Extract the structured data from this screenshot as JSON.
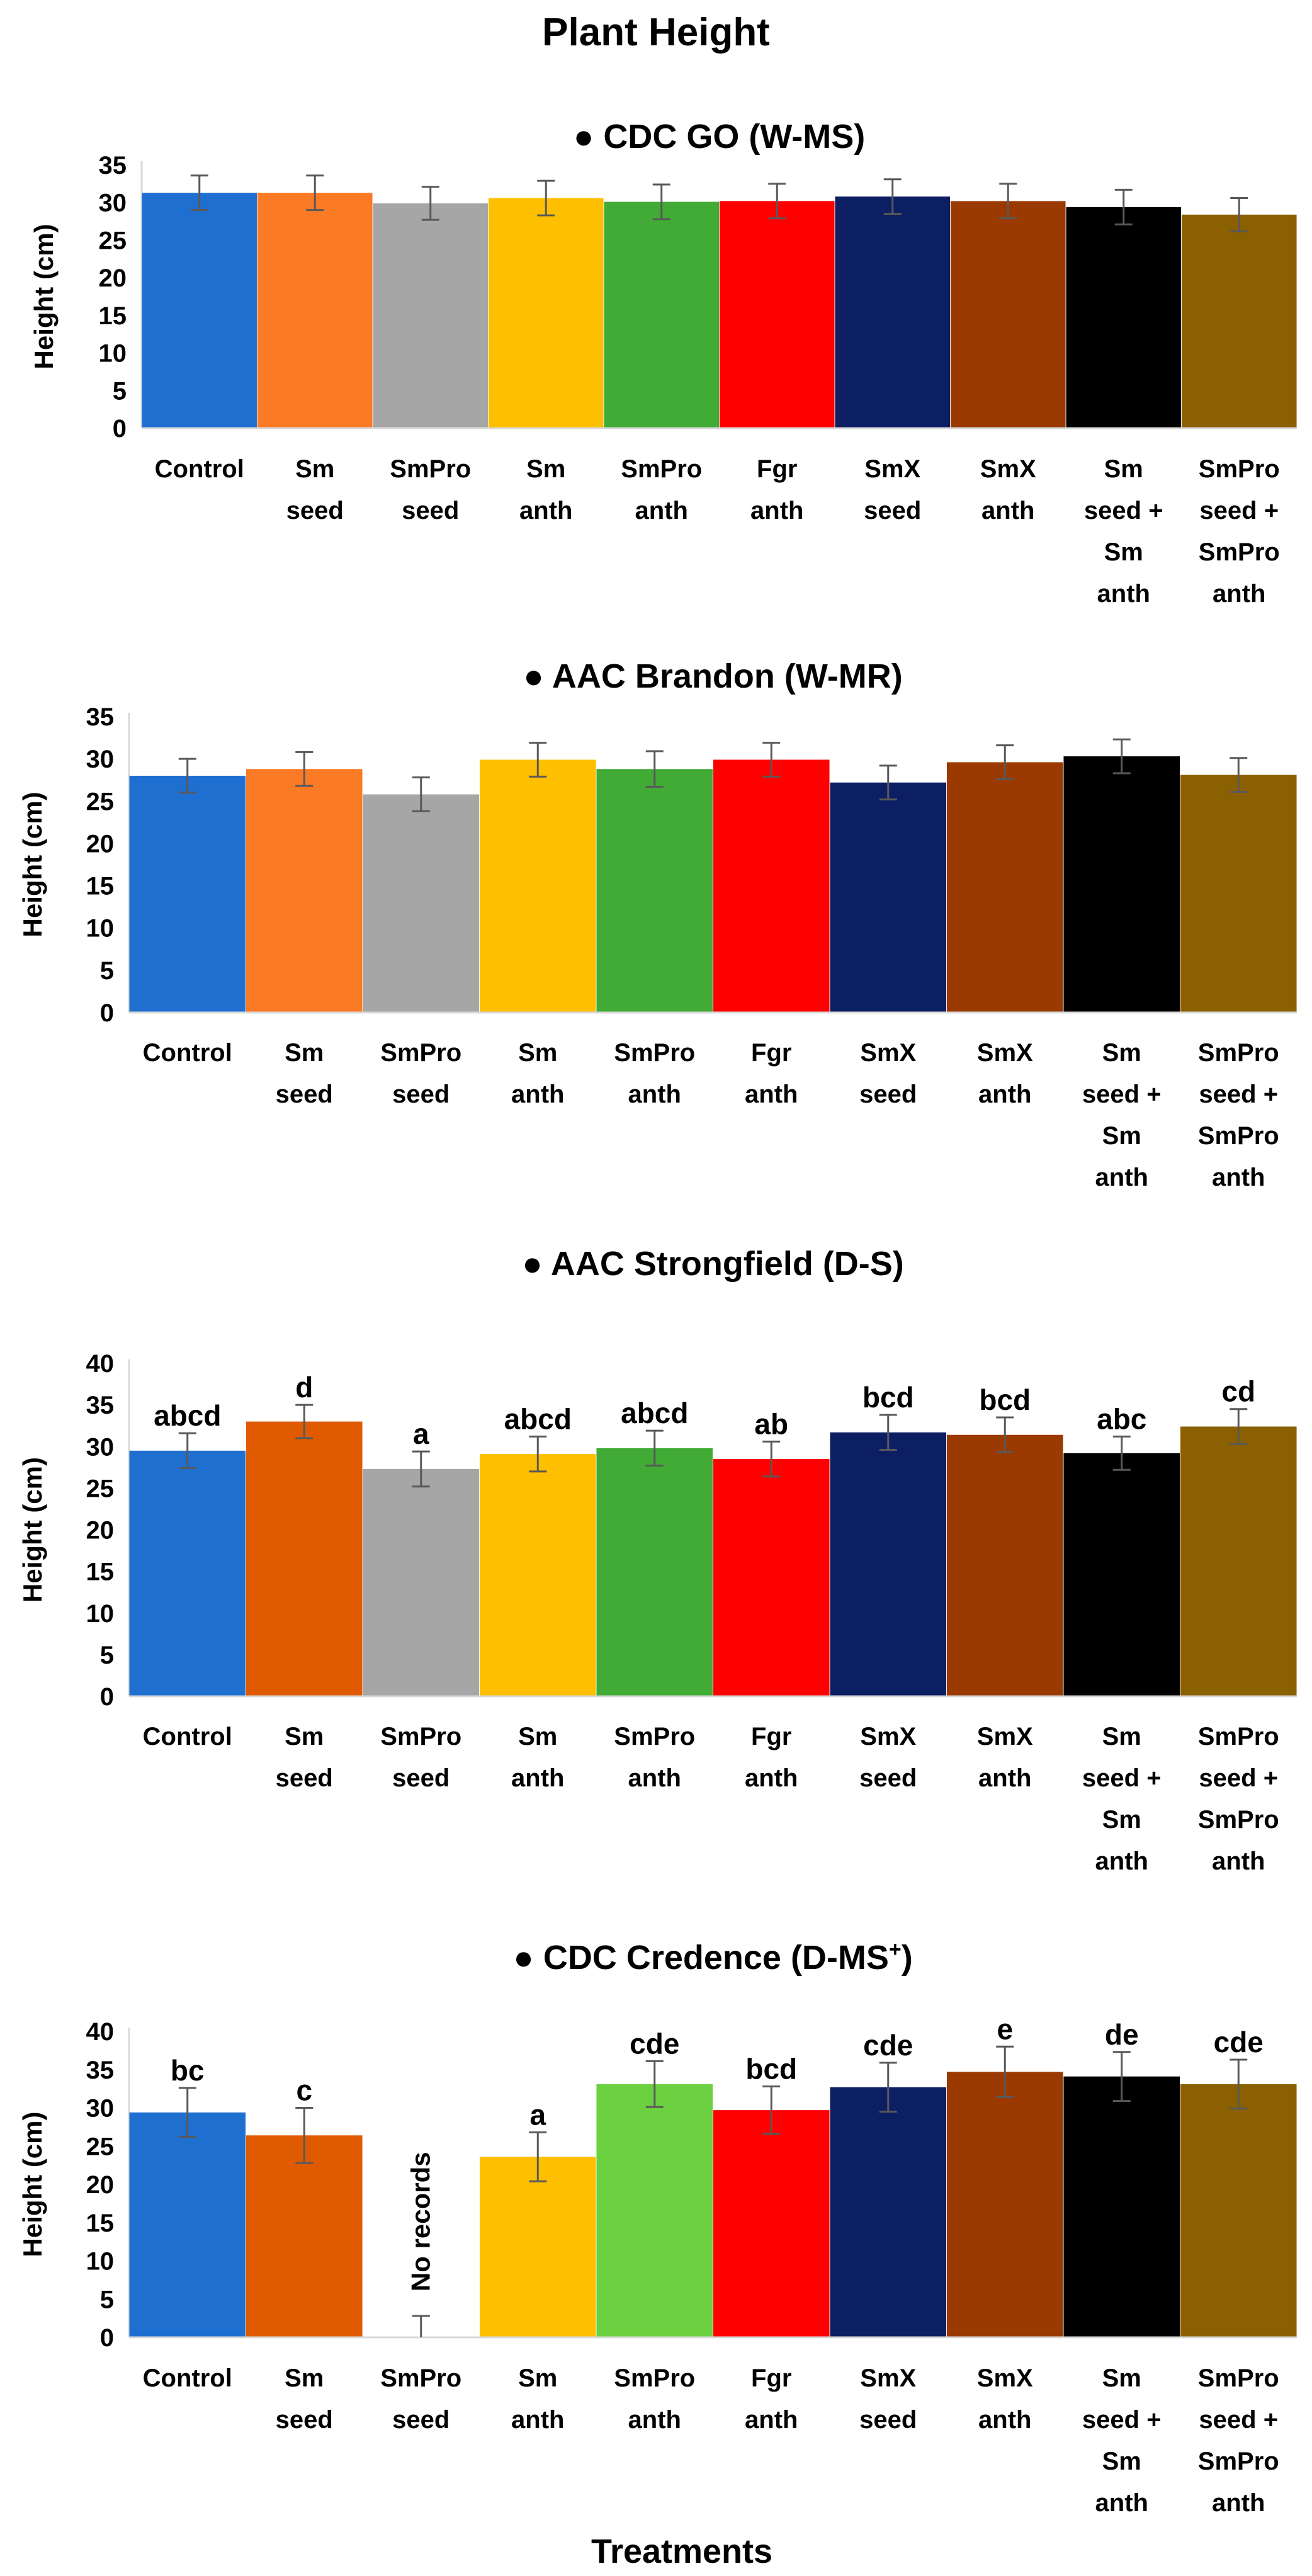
{
  "figure": {
    "title": "Plant Height",
    "xlabel": "Treatments",
    "bullet": "●"
  },
  "chart_data": [
    {
      "type": "bar",
      "title": "CDC GO (W-MS)",
      "ylabel": "Height (cm)",
      "ylim": [
        0,
        35
      ],
      "yticks": [
        0,
        5,
        10,
        15,
        20,
        25,
        30,
        35
      ],
      "categories": [
        [
          "Control"
        ],
        [
          "Sm",
          "seed"
        ],
        [
          "SmPro",
          "seed"
        ],
        [
          "Sm",
          "anth"
        ],
        [
          "SmPro",
          "anth"
        ],
        [
          "Fgr",
          "anth"
        ],
        [
          "SmX",
          "seed"
        ],
        [
          "SmX",
          "anth"
        ],
        [
          "Sm",
          "seed +",
          "Sm",
          "anth"
        ],
        [
          "SmPro",
          "seed +",
          "SmPro",
          "anth"
        ]
      ],
      "values": [
        31.3,
        31.3,
        29.9,
        30.6,
        30.1,
        30.2,
        30.8,
        30.2,
        29.4,
        28.4
      ],
      "errors": [
        2.3,
        2.3,
        2.2,
        2.3,
        2.3,
        2.3,
        2.3,
        2.3,
        2.3,
        2.2
      ],
      "colors": [
        "#1f6fd1",
        "#fb7a25",
        "#a6a6a6",
        "#fdbf00",
        "#41ab36",
        "#ff0000",
        "#0d1f63",
        "#9b3a00",
        "#000000",
        "#8b6000"
      ],
      "significance": []
    },
    {
      "type": "bar",
      "title": "AAC Brandon (W-MR)",
      "ylabel": "Height (cm)",
      "ylim": [
        0,
        35
      ],
      "yticks": [
        0,
        5,
        10,
        15,
        20,
        25,
        30,
        35
      ],
      "categories": [
        [
          "Control"
        ],
        [
          "Sm",
          "seed"
        ],
        [
          "SmPro",
          "seed"
        ],
        [
          "Sm",
          "anth"
        ],
        [
          "SmPro",
          "anth"
        ],
        [
          "Fgr",
          "anth"
        ],
        [
          "SmX",
          "seed"
        ],
        [
          "SmX",
          "anth"
        ],
        [
          "Sm",
          "seed +",
          "Sm",
          "anth"
        ],
        [
          "SmPro",
          "seed +",
          "SmPro",
          "anth"
        ]
      ],
      "values": [
        28.0,
        28.8,
        25.8,
        29.9,
        28.8,
        29.9,
        27.2,
        29.6,
        30.3,
        28.1
      ],
      "errors": [
        2.0,
        2.0,
        2.0,
        2.0,
        2.1,
        2.0,
        2.0,
        2.0,
        2.0,
        2.0
      ],
      "colors": [
        "#1f6fd1",
        "#fb7a25",
        "#a6a6a6",
        "#fdbf00",
        "#41ab36",
        "#ff0000",
        "#0d1f63",
        "#9b3a00",
        "#000000",
        "#8b6000"
      ],
      "significance": []
    },
    {
      "type": "bar",
      "title": "AAC Strongfield (D-S)",
      "ylabel": "Height (cm)",
      "ylim": [
        0,
        40
      ],
      "yticks": [
        0,
        5,
        10,
        15,
        20,
        25,
        30,
        35,
        40
      ],
      "categories": [
        [
          "Control"
        ],
        [
          "Sm",
          "seed"
        ],
        [
          "SmPro",
          "seed"
        ],
        [
          "Sm",
          "anth"
        ],
        [
          "SmPro",
          "anth"
        ],
        [
          "Fgr",
          "anth"
        ],
        [
          "SmX",
          "seed"
        ],
        [
          "SmX",
          "anth"
        ],
        [
          "Sm",
          "seed +",
          "Sm",
          "anth"
        ],
        [
          "SmPro",
          "seed +",
          "SmPro",
          "anth"
        ]
      ],
      "values": [
        29.5,
        33.0,
        27.3,
        29.1,
        29.8,
        28.5,
        31.7,
        31.4,
        29.2,
        32.4
      ],
      "errors": [
        2.1,
        2.0,
        2.1,
        2.1,
        2.1,
        2.1,
        2.1,
        2.1,
        2.0,
        2.1
      ],
      "colors": [
        "#1f6fd1",
        "#e05a00",
        "#a6a6a6",
        "#fdbf00",
        "#41ab36",
        "#ff0000",
        "#0d1f63",
        "#9b3a00",
        "#000000",
        "#8b6000"
      ],
      "significance": [
        "abcd",
        "d",
        "a",
        "abcd",
        "abcd",
        "ab",
        "bcd",
        "bcd",
        "abc",
        "cd"
      ]
    },
    {
      "type": "bar",
      "title": "CDC Credence (D-MS",
      "title_sup": "+",
      "title_tail": ")",
      "ylabel": "Height (cm)",
      "ylim": [
        0,
        40
      ],
      "yticks": [
        0,
        5,
        10,
        15,
        20,
        25,
        30,
        35,
        40
      ],
      "categories": [
        [
          "Control"
        ],
        [
          "Sm",
          "seed"
        ],
        [
          "SmPro",
          "seed"
        ],
        [
          "Sm",
          "anth"
        ],
        [
          "SmPro",
          "anth"
        ],
        [
          "Fgr",
          "anth"
        ],
        [
          "SmX",
          "seed"
        ],
        [
          "SmX",
          "anth"
        ],
        [
          "Sm",
          "seed +",
          "Sm",
          "anth"
        ],
        [
          "SmPro",
          "seed +",
          "SmPro",
          "anth"
        ]
      ],
      "values": [
        29.4,
        26.4,
        0,
        23.6,
        33.1,
        29.7,
        32.7,
        34.7,
        34.1,
        33.1
      ],
      "errors": [
        3.2,
        3.6,
        2.8,
        3.2,
        3.0,
        3.1,
        3.2,
        3.3,
        3.2,
        3.2
      ],
      "colors": [
        "#1f6fd1",
        "#e05a00",
        "#ffffff",
        "#fdbf00",
        "#6cd140",
        "#ff0000",
        "#0d1f63",
        "#9b3a00",
        "#000000",
        "#8b6000"
      ],
      "significance": [
        "bc",
        "c",
        "",
        "a",
        "cde",
        "bcd",
        "cde",
        "e",
        "de",
        "cde"
      ],
      "no_record_index": 2,
      "no_record_label": "No records"
    }
  ]
}
